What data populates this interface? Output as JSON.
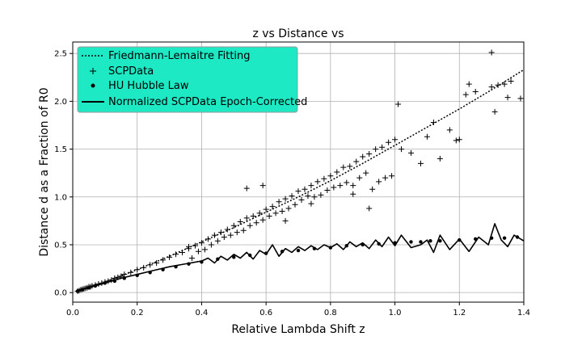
{
  "chart_data": {
    "type": "scatter",
    "title": "z vs Distance vs",
    "xlabel": "Relative Lambda Shift z",
    "ylabel": "Distance d as a Fraction of R0",
    "xlim": [
      0.0,
      1.4
    ],
    "ylim": [
      -0.1,
      2.62
    ],
    "xticks": [
      "0.0",
      "0.2",
      "0.4",
      "0.6",
      "0.8",
      "1.0",
      "1.2",
      "1.4"
    ],
    "yticks": [
      "0.0",
      "0.5",
      "1.0",
      "1.5",
      "2.0",
      "2.5"
    ],
    "grid": true,
    "legend": {
      "position": "top-left",
      "background": "#1de9c4",
      "entries": [
        {
          "label": "Friedmann-Lemaitre Fitting",
          "style": "dotted-line"
        },
        {
          "label": "SCPData",
          "style": "plus-marker"
        },
        {
          "label": "HU Hubble Law",
          "style": "dot-marker"
        },
        {
          "label": "Normalized SCPData Epoch-Corrected",
          "style": "solid-line"
        }
      ]
    },
    "series": [
      {
        "name": "Friedmann-Lemaitre Fitting",
        "kind": "dotted-line",
        "x": [
          0.01,
          0.1,
          0.2,
          0.3,
          0.4,
          0.5,
          0.6,
          0.7,
          0.8,
          0.9,
          1.0,
          1.1,
          1.2,
          1.3,
          1.4
        ],
        "y": [
          0.01,
          0.11,
          0.24,
          0.38,
          0.53,
          0.68,
          0.84,
          1.0,
          1.17,
          1.35,
          1.54,
          1.73,
          1.92,
          2.12,
          2.33
        ]
      },
      {
        "name": "SCPData",
        "kind": "plus",
        "x": [
          0.015,
          0.02,
          0.025,
          0.03,
          0.035,
          0.04,
          0.045,
          0.05,
          0.055,
          0.06,
          0.07,
          0.08,
          0.09,
          0.1,
          0.11,
          0.12,
          0.13,
          0.14,
          0.15,
          0.16,
          0.18,
          0.2,
          0.22,
          0.24,
          0.26,
          0.28,
          0.3,
          0.32,
          0.34,
          0.36,
          0.38,
          0.4,
          0.42,
          0.44,
          0.46,
          0.48,
          0.5,
          0.52,
          0.54,
          0.56,
          0.58,
          0.6,
          0.62,
          0.64,
          0.66,
          0.68,
          0.7,
          0.72,
          0.74,
          0.76,
          0.78,
          0.8,
          0.82,
          0.84,
          0.86,
          0.88,
          0.9,
          0.92,
          0.94,
          0.96,
          0.98,
          1.0,
          1.02,
          1.05,
          1.08,
          1.1,
          1.12,
          1.14,
          1.2,
          1.22,
          1.23,
          1.25,
          1.3,
          1.31,
          1.32,
          1.34,
          1.35,
          1.36,
          1.39,
          0.37,
          0.39,
          0.41,
          0.43,
          0.45,
          0.47,
          0.49,
          0.51,
          0.53,
          0.55,
          0.57,
          0.59,
          0.61,
          0.63,
          0.65,
          0.67,
          0.69,
          0.71,
          0.73,
          0.75,
          0.77,
          0.79,
          0.81,
          0.83,
          0.85,
          0.87,
          0.89,
          0.91,
          0.93,
          0.95,
          0.97,
          0.99,
          1.01,
          0.54,
          0.74,
          0.87,
          0.92,
          1.17,
          1.19,
          1.3,
          0.36,
          0.66,
          0.59
        ],
        "y": [
          0.015,
          0.02,
          0.03,
          0.035,
          0.04,
          0.045,
          0.05,
          0.06,
          0.06,
          0.07,
          0.08,
          0.09,
          0.1,
          0.11,
          0.12,
          0.13,
          0.15,
          0.16,
          0.17,
          0.19,
          0.21,
          0.24,
          0.26,
          0.29,
          0.31,
          0.34,
          0.37,
          0.4,
          0.42,
          0.46,
          0.49,
          0.52,
          0.56,
          0.6,
          0.63,
          0.66,
          0.7,
          0.74,
          0.78,
          0.8,
          0.83,
          0.87,
          0.9,
          0.95,
          0.98,
          1.01,
          1.06,
          1.08,
          1.12,
          1.16,
          1.19,
          1.22,
          1.26,
          1.31,
          1.32,
          1.37,
          1.42,
          1.45,
          1.5,
          1.52,
          1.57,
          1.6,
          1.5,
          1.46,
          1.35,
          1.63,
          1.78,
          1.4,
          1.6,
          2.07,
          2.18,
          2.1,
          2.15,
          1.89,
          2.17,
          2.18,
          2.04,
          2.21,
          2.03,
          0.36,
          0.43,
          0.45,
          0.5,
          0.54,
          0.58,
          0.6,
          0.63,
          0.65,
          0.7,
          0.73,
          0.76,
          0.8,
          0.83,
          0.85,
          0.88,
          0.92,
          0.97,
          1.01,
          1.0,
          1.02,
          1.07,
          1.1,
          1.12,
          1.15,
          1.12,
          1.2,
          1.25,
          1.08,
          1.16,
          1.2,
          1.22,
          1.97,
          1.09,
          0.93,
          1.03,
          0.88,
          1.7,
          1.59,
          2.51,
          0.48,
          0.75,
          1.12
        ]
      },
      {
        "name": "HU Hubble Law",
        "kind": "dot",
        "x": [
          0.015,
          0.03,
          0.05,
          0.07,
          0.1,
          0.13,
          0.16,
          0.2,
          0.24,
          0.28,
          0.32,
          0.36,
          0.4,
          0.45,
          0.5,
          0.55,
          0.6,
          0.65,
          0.7,
          0.75,
          0.8,
          0.85,
          0.9,
          0.95,
          1.0,
          1.05,
          1.08,
          1.11,
          1.14,
          1.2,
          1.25,
          1.3,
          1.34,
          1.38
        ],
        "y": [
          0.015,
          0.03,
          0.05,
          0.07,
          0.1,
          0.12,
          0.15,
          0.18,
          0.21,
          0.24,
          0.27,
          0.3,
          0.32,
          0.35,
          0.37,
          0.39,
          0.41,
          0.43,
          0.44,
          0.46,
          0.47,
          0.49,
          0.5,
          0.51,
          0.52,
          0.53,
          0.53,
          0.54,
          0.54,
          0.55,
          0.56,
          0.57,
          0.57,
          0.58
        ]
      },
      {
        "name": "Normalized SCPData Epoch-Corrected",
        "kind": "solid-line",
        "x": [
          0.015,
          0.05,
          0.1,
          0.15,
          0.2,
          0.25,
          0.3,
          0.35,
          0.4,
          0.42,
          0.44,
          0.46,
          0.48,
          0.5,
          0.52,
          0.54,
          0.56,
          0.58,
          0.6,
          0.62,
          0.64,
          0.66,
          0.68,
          0.7,
          0.72,
          0.74,
          0.76,
          0.78,
          0.8,
          0.82,
          0.84,
          0.86,
          0.88,
          0.9,
          0.92,
          0.94,
          0.96,
          0.98,
          1.0,
          1.02,
          1.05,
          1.08,
          1.1,
          1.12,
          1.14,
          1.17,
          1.2,
          1.23,
          1.26,
          1.29,
          1.31,
          1.33,
          1.35,
          1.37,
          1.4
        ],
        "y": [
          0.015,
          0.05,
          0.1,
          0.15,
          0.19,
          0.23,
          0.27,
          0.3,
          0.33,
          0.36,
          0.31,
          0.38,
          0.34,
          0.4,
          0.36,
          0.42,
          0.35,
          0.44,
          0.4,
          0.5,
          0.38,
          0.46,
          0.42,
          0.48,
          0.44,
          0.49,
          0.45,
          0.5,
          0.47,
          0.51,
          0.45,
          0.53,
          0.48,
          0.52,
          0.46,
          0.55,
          0.48,
          0.58,
          0.49,
          0.6,
          0.47,
          0.5,
          0.55,
          0.42,
          0.6,
          0.45,
          0.56,
          0.43,
          0.58,
          0.5,
          0.72,
          0.55,
          0.48,
          0.6,
          0.54
        ]
      }
    ]
  }
}
